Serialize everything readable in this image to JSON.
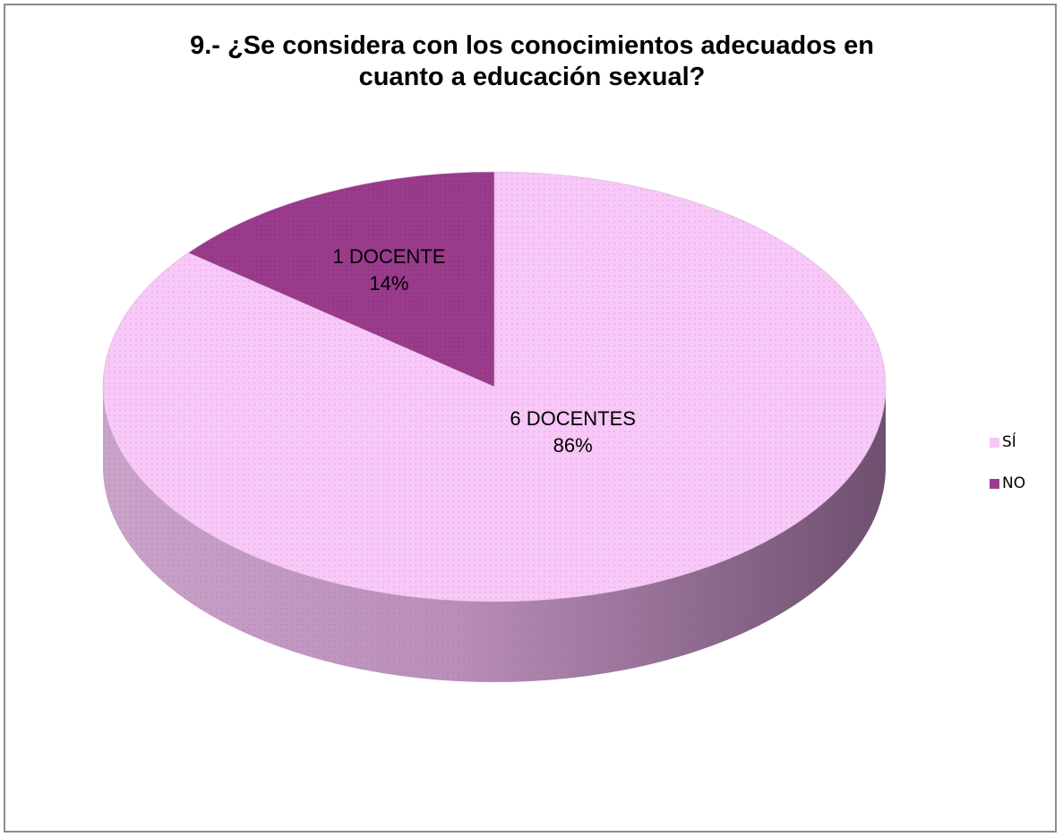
{
  "chart_data": {
    "type": "pie",
    "title": "9.- ¿Se considera con los conocimientos adecuados en\ncuanto a educación sexual?",
    "slices": [
      {
        "label": "SÍ",
        "value": 6,
        "percent": 86,
        "data_label": "6 DOCENTES",
        "color": "#f6c6f6"
      },
      {
        "label": "NO",
        "value": 1,
        "percent": 14,
        "data_label": "1 DOCENTE",
        "color": "#9b3c8c"
      }
    ],
    "legend_position": "right",
    "style": "3d-pie"
  }
}
